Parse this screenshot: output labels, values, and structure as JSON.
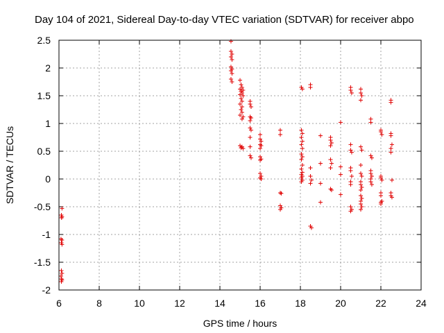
{
  "chart_data": {
    "type": "scatter",
    "title": "Day 104 of 2021, Sidereal Day-to-day VTEC variation (SDTVAR) for receiver abpo",
    "xlabel": "GPS time / hours",
    "ylabel": "SDTVAR / TECUs",
    "xlim": [
      6,
      24
    ],
    "ylim": [
      -2,
      2.5
    ],
    "xticks": [
      6,
      8,
      10,
      12,
      14,
      16,
      18,
      20,
      22,
      24
    ],
    "yticks": [
      -2,
      -1.5,
      -1,
      -0.5,
      0,
      0.5,
      1,
      1.5,
      2,
      2.5
    ],
    "grid": true,
    "marker": "+",
    "color": "#e00000",
    "series": [
      {
        "name": "SDTVAR",
        "points": [
          [
            6.15,
            -0.53
          ],
          [
            6.12,
            -0.65
          ],
          [
            6.15,
            -0.68
          ],
          [
            6.13,
            -0.7
          ],
          [
            6.1,
            -1.08
          ],
          [
            6.15,
            -1.1
          ],
          [
            6.12,
            -1.15
          ],
          [
            6.15,
            -1.18
          ],
          [
            6.12,
            -1.65
          ],
          [
            6.15,
            -1.7
          ],
          [
            6.1,
            -1.75
          ],
          [
            6.13,
            -1.8
          ],
          [
            6.12,
            -1.85
          ],
          [
            6.15,
            -1.82
          ],
          [
            14.55,
            2.48
          ],
          [
            14.55,
            2.3
          ],
          [
            14.6,
            2.25
          ],
          [
            14.55,
            2.2
          ],
          [
            14.6,
            2.15
          ],
          [
            14.55,
            2.02
          ],
          [
            14.6,
            1.98
          ],
          [
            14.55,
            1.95
          ],
          [
            14.6,
            1.9
          ],
          [
            14.55,
            1.8
          ],
          [
            14.6,
            1.75
          ],
          [
            15.0,
            1.78
          ],
          [
            15.05,
            1.7
          ],
          [
            15.1,
            1.65
          ],
          [
            15.0,
            1.62
          ],
          [
            15.15,
            1.6
          ],
          [
            15.05,
            1.58
          ],
          [
            15.1,
            1.55
          ],
          [
            15.0,
            1.52
          ],
          [
            15.15,
            1.5
          ],
          [
            15.05,
            1.45
          ],
          [
            15.1,
            1.4
          ],
          [
            15.0,
            1.35
          ],
          [
            15.1,
            1.3
          ],
          [
            15.05,
            1.25
          ],
          [
            15.1,
            1.2
          ],
          [
            15.0,
            1.15
          ],
          [
            15.15,
            1.12
          ],
          [
            15.1,
            1.08
          ],
          [
            15.0,
            0.6
          ],
          [
            15.1,
            0.58
          ],
          [
            15.05,
            0.56
          ],
          [
            15.15,
            0.55
          ],
          [
            15.5,
            1.4
          ],
          [
            15.5,
            1.35
          ],
          [
            15.55,
            1.3
          ],
          [
            15.5,
            1.12
          ],
          [
            15.55,
            1.1
          ],
          [
            15.5,
            1.05
          ],
          [
            15.5,
            0.92
          ],
          [
            15.55,
            0.88
          ],
          [
            15.5,
            0.75
          ],
          [
            15.5,
            0.58
          ],
          [
            15.5,
            0.42
          ],
          [
            15.55,
            0.38
          ],
          [
            16.0,
            0.8
          ],
          [
            16.0,
            0.72
          ],
          [
            16.05,
            0.68
          ],
          [
            16.0,
            0.62
          ],
          [
            16.05,
            0.6
          ],
          [
            16.0,
            0.55
          ],
          [
            16.0,
            0.4
          ],
          [
            16.05,
            0.36
          ],
          [
            16.0,
            0.34
          ],
          [
            16.0,
            0.1
          ],
          [
            16.05,
            0.05
          ],
          [
            16.0,
            0.02
          ],
          [
            16.05,
            0.0
          ],
          [
            17.0,
            0.88
          ],
          [
            17.0,
            0.8
          ],
          [
            17.0,
            -0.25
          ],
          [
            17.05,
            -0.26
          ],
          [
            17.0,
            -0.48
          ],
          [
            17.05,
            -0.52
          ],
          [
            17.0,
            -0.55
          ],
          [
            18.05,
            1.65
          ],
          [
            18.1,
            1.62
          ],
          [
            18.05,
            0.88
          ],
          [
            18.1,
            0.82
          ],
          [
            18.05,
            0.75
          ],
          [
            18.1,
            0.68
          ],
          [
            18.05,
            0.62
          ],
          [
            18.1,
            0.55
          ],
          [
            18.05,
            0.45
          ],
          [
            18.1,
            0.4
          ],
          [
            18.05,
            0.35
          ],
          [
            18.1,
            0.25
          ],
          [
            18.05,
            0.18
          ],
          [
            18.1,
            0.12
          ],
          [
            18.05,
            0.08
          ],
          [
            18.1,
            0.05
          ],
          [
            18.05,
            0.02
          ],
          [
            18.1,
            -0.02
          ],
          [
            18.05,
            -0.05
          ],
          [
            18.5,
            1.7
          ],
          [
            18.5,
            1.65
          ],
          [
            18.5,
            0.2
          ],
          [
            18.5,
            0.05
          ],
          [
            18.55,
            -0.02
          ],
          [
            18.5,
            -0.08
          ],
          [
            18.5,
            -0.85
          ],
          [
            18.55,
            -0.88
          ],
          [
            19.0,
            0.78
          ],
          [
            19.0,
            0.28
          ],
          [
            19.0,
            -0.08
          ],
          [
            19.0,
            -0.42
          ],
          [
            19.5,
            0.75
          ],
          [
            19.5,
            0.7
          ],
          [
            19.55,
            0.65
          ],
          [
            19.5,
            0.6
          ],
          [
            19.5,
            0.35
          ],
          [
            19.55,
            0.28
          ],
          [
            19.5,
            0.2
          ],
          [
            19.5,
            -0.18
          ],
          [
            19.55,
            -0.2
          ],
          [
            20.0,
            1.02
          ],
          [
            20.0,
            0.22
          ],
          [
            20.0,
            0.08
          ],
          [
            20.0,
            -0.28
          ],
          [
            20.5,
            1.65
          ],
          [
            20.5,
            1.6
          ],
          [
            20.55,
            1.55
          ],
          [
            20.5,
            0.62
          ],
          [
            20.5,
            0.52
          ],
          [
            20.55,
            0.48
          ],
          [
            20.5,
            0.2
          ],
          [
            20.5,
            0.15
          ],
          [
            20.55,
            0.05
          ],
          [
            20.5,
            -0.05
          ],
          [
            20.5,
            -0.1
          ],
          [
            20.5,
            -0.5
          ],
          [
            20.55,
            -0.55
          ],
          [
            20.5,
            -0.58
          ],
          [
            21.0,
            1.62
          ],
          [
            21.0,
            1.55
          ],
          [
            21.05,
            1.5
          ],
          [
            21.0,
            1.42
          ],
          [
            21.0,
            0.58
          ],
          [
            21.05,
            0.52
          ],
          [
            21.0,
            0.25
          ],
          [
            21.0,
            0.1
          ],
          [
            21.05,
            0.05
          ],
          [
            21.0,
            -0.05
          ],
          [
            21.0,
            -0.1
          ],
          [
            21.05,
            -0.15
          ],
          [
            21.0,
            -0.2
          ],
          [
            21.0,
            -0.3
          ],
          [
            21.05,
            -0.35
          ],
          [
            21.0,
            -0.4
          ],
          [
            21.0,
            -0.45
          ],
          [
            21.05,
            -0.5
          ],
          [
            21.0,
            -0.55
          ],
          [
            21.5,
            1.08
          ],
          [
            21.5,
            1.02
          ],
          [
            21.5,
            0.42
          ],
          [
            21.55,
            0.38
          ],
          [
            21.5,
            0.15
          ],
          [
            21.5,
            0.1
          ],
          [
            21.55,
            0.05
          ],
          [
            21.5,
            0.0
          ],
          [
            21.5,
            -0.05
          ],
          [
            21.55,
            -0.1
          ],
          [
            22.0,
            0.88
          ],
          [
            22.0,
            0.85
          ],
          [
            22.05,
            0.8
          ],
          [
            22.0,
            0.05
          ],
          [
            22.0,
            0.02
          ],
          [
            22.05,
            -0.02
          ],
          [
            22.0,
            -0.25
          ],
          [
            22.0,
            -0.3
          ],
          [
            22.05,
            -0.4
          ],
          [
            22.0,
            -0.42
          ],
          [
            22.0,
            -0.45
          ],
          [
            22.5,
            1.42
          ],
          [
            22.5,
            1.38
          ],
          [
            22.5,
            0.82
          ],
          [
            22.5,
            0.78
          ],
          [
            22.55,
            0.62
          ],
          [
            22.5,
            0.55
          ],
          [
            22.5,
            0.48
          ],
          [
            22.55,
            -0.02
          ],
          [
            22.5,
            -0.25
          ],
          [
            22.5,
            -0.3
          ],
          [
            22.55,
            -0.33
          ]
        ]
      }
    ]
  }
}
